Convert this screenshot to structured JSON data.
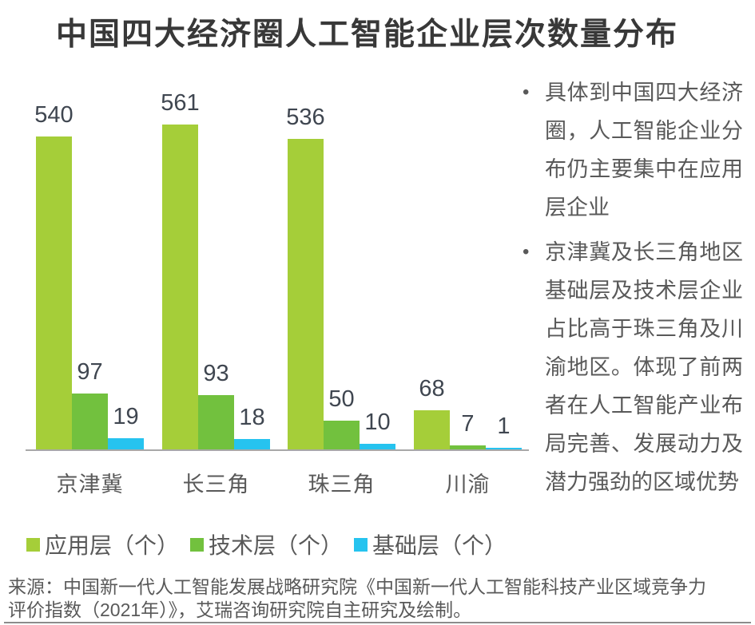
{
  "title": "中国四大经济圈人工智能企业层次数量分布",
  "chart_data": {
    "type": "bar",
    "categories": [
      "京津冀",
      "长三角",
      "珠三角",
      "川渝"
    ],
    "series": [
      {
        "name": "应用层（个）",
        "color": "#a5ce39",
        "values": [
          540,
          561,
          536,
          68
        ]
      },
      {
        "name": "技术层（个）",
        "color": "#72c13e",
        "values": [
          97,
          93,
          50,
          7
        ]
      },
      {
        "name": "基础层（个）",
        "color": "#26c3ef",
        "values": [
          19,
          18,
          10,
          1
        ]
      }
    ],
    "title": "中国四大经济圈人工智能企业层次数量分布",
    "xlabel": "",
    "ylabel": "",
    "ylim": [
      0,
      561
    ],
    "grid": false,
    "legend_position": "bottom",
    "value_labels": true,
    "axis_line_color": "#a8a8a8"
  },
  "notes": {
    "bullets": [
      "具体到中国四大经济圈，人工智能企业分布仍主要集中在应用层企业",
      "京津冀及长三角地区基础层及技术层企业占比高于珠三角及川渝地区。体现了前两者在人工智能产业布局完善、发展动力及潜力强劲的区域优势"
    ],
    "bullet_glyph": "•"
  },
  "source": "来源：中国新一代人工智能发展战略研究院《中国新一代人工智能科技产业区域竞争力评价指数（2021年）》，艾瑞咨询研究院自主研究及绘制。"
}
